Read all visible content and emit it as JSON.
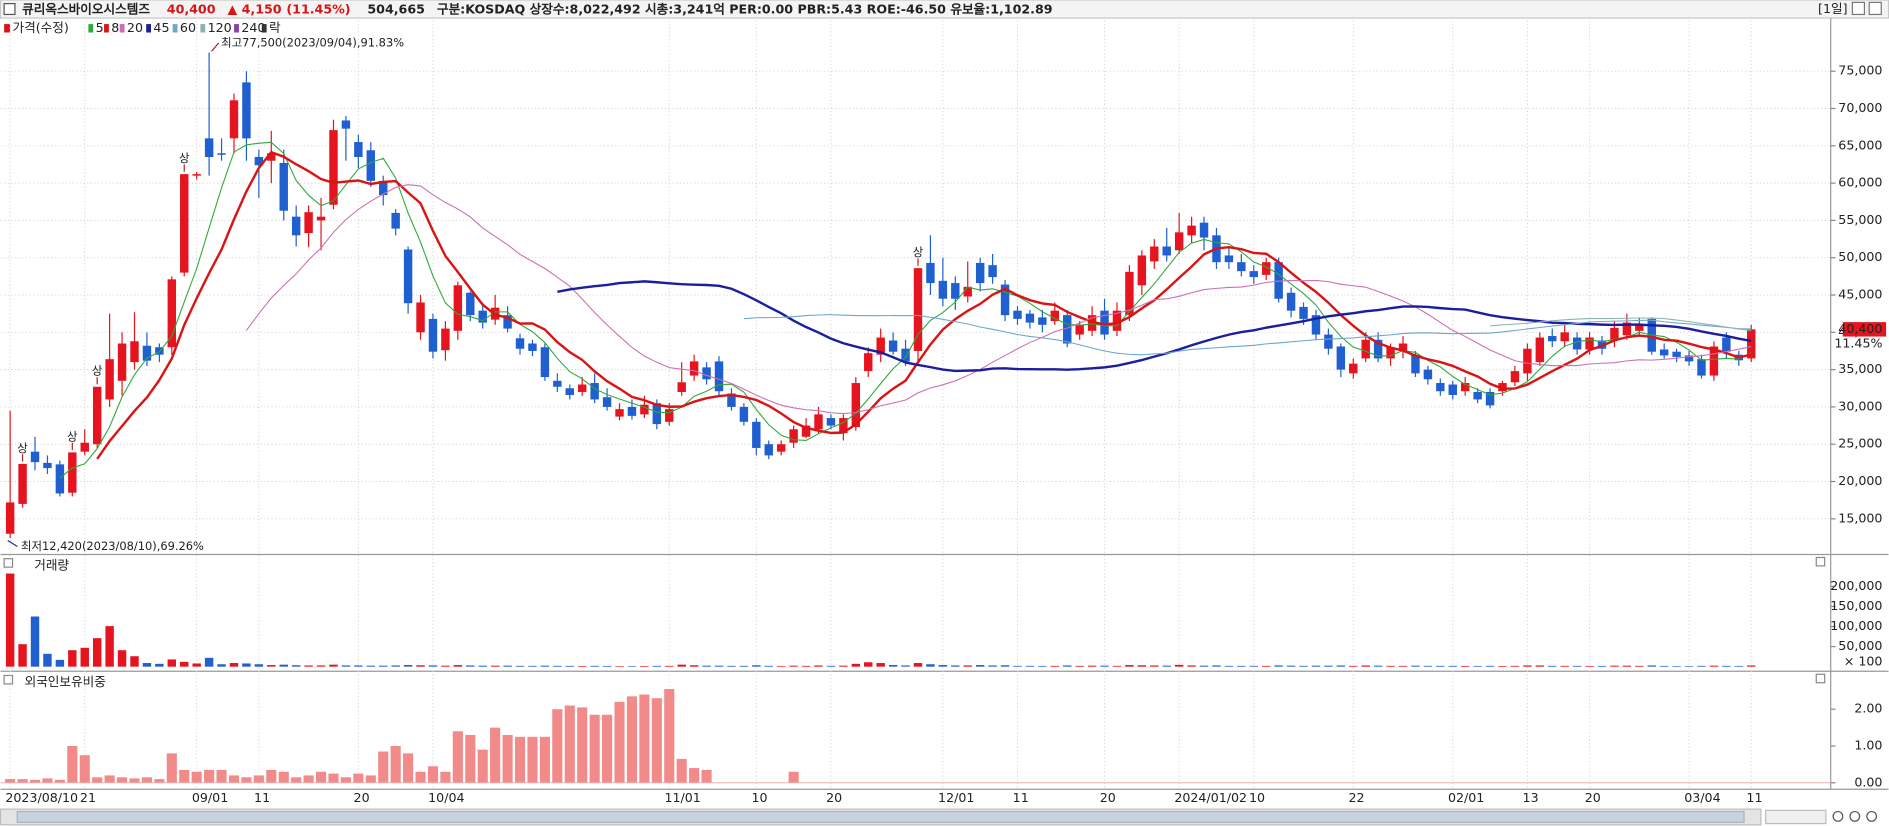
{
  "header": {
    "name": "큐리옥스바이오시스템즈",
    "price": "40,400",
    "change": "▲ 4,150",
    "change_pct": "(11.45%)",
    "volume": "504,665",
    "info": "구분:KOSDAQ 상장수:8,022,492 시총:3,241억 PER:0.00 PBR:5.43 ROE:-46.50 유보율:1,102.89",
    "period": "[1일]"
  },
  "chart_data": [
    {
      "type": "candlestick",
      "price_label": "가격(수정)",
      "ex_rights_label": "락",
      "categories": [
        "2023/08/10",
        null,
        null,
        null,
        null,
        null,
        "21",
        null,
        null,
        null,
        null,
        null,
        null,
        null,
        null,
        "09/01",
        null,
        null,
        null,
        null,
        "11",
        null,
        null,
        null,
        null,
        null,
        null,
        null,
        "20",
        null,
        null,
        null,
        null,
        null,
        "10/04",
        null,
        null,
        null,
        null,
        null,
        null,
        null,
        null,
        null,
        null,
        null,
        null,
        null,
        null,
        null,
        null,
        null,
        null,
        "11/01",
        null,
        null,
        null,
        null,
        null,
        null,
        "10",
        null,
        null,
        null,
        null,
        null,
        "20",
        null,
        null,
        null,
        null,
        null,
        null,
        null,
        null,
        "12/01",
        null,
        null,
        null,
        null,
        null,
        "11",
        null,
        null,
        null,
        null,
        null,
        null,
        "20",
        null,
        null,
        null,
        null,
        null,
        "2024/01/02",
        null,
        null,
        null,
        null,
        null,
        "10",
        null,
        null,
        null,
        null,
        null,
        null,
        null,
        "22",
        null,
        null,
        null,
        null,
        null,
        null,
        null,
        "02/01",
        null,
        null,
        null,
        null,
        null,
        "13",
        null,
        null,
        null,
        null,
        "20",
        null,
        null,
        null,
        null,
        null,
        null,
        null,
        "03/04",
        null,
        null,
        null,
        null,
        "11"
      ],
      "open": [
        13000,
        17000,
        24000,
        22500,
        22300,
        18500,
        24000,
        25000,
        31000,
        33500,
        36000,
        38200,
        38000,
        38000,
        48000,
        61000,
        66000,
        64000,
        66000,
        73500,
        63500,
        63000,
        62700,
        55500,
        53300,
        55000,
        57100,
        68400,
        65500,
        64400,
        60300,
        56000,
        51100,
        40000,
        41800,
        37600,
        40200,
        45300,
        42900,
        41700,
        42300,
        39200,
        38500,
        38000,
        33500,
        32500,
        32000,
        33200,
        31300,
        28700,
        30000,
        29000,
        30500,
        28000,
        32000,
        34200,
        35300,
        36100,
        31800,
        30000,
        28000,
        25000,
        24000,
        25200,
        26000,
        27000,
        28500,
        26500,
        27300,
        34800,
        37000,
        38900,
        37800,
        37500,
        49300,
        46900,
        46600,
        44800,
        49300,
        49000,
        46400,
        42900,
        42500,
        42000,
        41500,
        42300,
        39700,
        40200,
        42900,
        40200,
        42300,
        46300,
        49500,
        51500,
        51000,
        53000,
        54700,
        53000,
        50300,
        49400,
        48200,
        47700,
        49400,
        45300,
        43400,
        42300,
        39700,
        38100,
        34500,
        36500,
        39000,
        36500,
        37500,
        37000,
        35000,
        33200,
        33000,
        32100,
        32000,
        32000,
        32100,
        33300,
        34500,
        36000,
        39500,
        38800,
        39300,
        37700,
        38900,
        38900,
        39600,
        40200,
        41800,
        37700,
        37400,
        36900,
        36400,
        34200,
        39300,
        37000,
        36500
      ],
      "high": [
        29500,
        22360,
        26000,
        23500,
        22800,
        23900,
        27000,
        32700,
        42500,
        40000,
        42700,
        40000,
        38500,
        47500,
        61200,
        61500,
        77500,
        66000,
        72000,
        75000,
        64500,
        67000,
        64500,
        57000,
        57000,
        58000,
        68500,
        69000,
        66500,
        65500,
        61000,
        56500,
        51500,
        45000,
        42500,
        41500,
        46800,
        45500,
        44000,
        45000,
        43500,
        39800,
        39000,
        38500,
        34500,
        33000,
        34000,
        34500,
        32500,
        30500,
        31000,
        31500,
        31000,
        30500,
        36000,
        37000,
        36000,
        36800,
        32500,
        30500,
        28500,
        25500,
        25500,
        27500,
        28500,
        30000,
        29000,
        29000,
        34000,
        38000,
        40500,
        40000,
        39000,
        48600,
        53000,
        50000,
        47500,
        49500,
        50000,
        50500,
        47000,
        43500,
        43000,
        43000,
        44000,
        43000,
        41500,
        43500,
        44500,
        44000,
        49000,
        51000,
        52500,
        54000,
        56000,
        55500,
        55500,
        54000,
        51500,
        50500,
        49000,
        50000,
        50000,
        46000,
        44000,
        43000,
        40500,
        38500,
        36500,
        40000,
        40000,
        38500,
        39500,
        37500,
        35500,
        33800,
        33500,
        34000,
        32500,
        32500,
        33500,
        35500,
        38500,
        40000,
        40500,
        41000,
        40000,
        40000,
        39500,
        41500,
        42500,
        42000,
        42000,
        38500,
        37800,
        37500,
        37000,
        38800,
        40000,
        37500,
        41000
      ],
      "low": [
        12420,
        16500,
        21500,
        21000,
        18000,
        18000,
        23500,
        24500,
        30000,
        31500,
        35000,
        35500,
        36000,
        37000,
        47500,
        60500,
        61000,
        63000,
        64000,
        63000,
        58000,
        60000,
        55000,
        51500,
        51400,
        51000,
        56500,
        63000,
        62000,
        59500,
        57000,
        53000,
        42500,
        39000,
        36500,
        36200,
        39000,
        41500,
        40500,
        41000,
        40000,
        37000,
        36800,
        33500,
        32000,
        31000,
        31500,
        30500,
        29500,
        28200,
        28300,
        28500,
        27000,
        27500,
        31500,
        33500,
        33000,
        31500,
        29500,
        27500,
        23500,
        23000,
        23500,
        24500,
        25800,
        26500,
        27000,
        25500,
        26800,
        34000,
        36000,
        37000,
        35500,
        36000,
        45000,
        43500,
        43000,
        44000,
        45500,
        46500,
        41500,
        41000,
        40500,
        40000,
        41000,
        38000,
        39000,
        39500,
        39000,
        39500,
        41500,
        45000,
        48500,
        49500,
        50500,
        52000,
        51000,
        48500,
        48500,
        47500,
        46500,
        47000,
        44000,
        42000,
        41000,
        39000,
        37000,
        34000,
        33800,
        36000,
        36000,
        35500,
        36500,
        34000,
        33000,
        31500,
        31000,
        31500,
        30500,
        29800,
        31500,
        32800,
        33500,
        35500,
        38000,
        38000,
        37000,
        37000,
        37000,
        38000,
        39000,
        39500,
        37000,
        36500,
        36000,
        35500,
        33800,
        33500,
        36500,
        35500,
        36000
      ],
      "close": [
        17200,
        22360,
        22600,
        21800,
        18400,
        23900,
        25200,
        32700,
        36400,
        38500,
        38800,
        36200,
        37000,
        47100,
        61200,
        61200,
        63500,
        63800,
        71100,
        66000,
        62400,
        64000,
        56300,
        53000,
        56100,
        55500,
        67100,
        67300,
        63500,
        60300,
        58400,
        53900,
        43900,
        44000,
        37400,
        40500,
        46300,
        42300,
        41300,
        43300,
        40500,
        37800,
        37500,
        34000,
        32700,
        31600,
        33000,
        31000,
        30000,
        29700,
        28800,
        30300,
        27700,
        29700,
        33300,
        36100,
        33700,
        32100,
        30000,
        28000,
        24500,
        23500,
        25000,
        27000,
        27500,
        29000,
        27500,
        28500,
        33200,
        37200,
        39300,
        37400,
        36100,
        48600,
        46600,
        44500,
        44500,
        46100,
        46600,
        47400,
        42300,
        41800,
        41300,
        41000,
        42900,
        38500,
        41000,
        42300,
        39700,
        42900,
        48100,
        50300,
        51500,
        50300,
        53400,
        54300,
        52700,
        49400,
        49400,
        48200,
        47400,
        49400,
        44500,
        42900,
        41800,
        39700,
        37800,
        35000,
        35800,
        39000,
        36500,
        38000,
        38500,
        34500,
        33700,
        32100,
        31600,
        33200,
        31000,
        30200,
        33200,
        34800,
        37800,
        39300,
        38800,
        40000,
        37700,
        39300,
        37800,
        40600,
        41300,
        41000,
        37400,
        36900,
        36700,
        36100,
        34200,
        38100,
        37400,
        36250,
        40400
      ],
      "up_color": "#e6141e",
      "down_color": "#1f5fd0",
      "ma_periods": [
        5,
        8,
        20,
        45,
        60,
        120,
        240
      ],
      "ma_colors": [
        "#2ea83a",
        "#d81414",
        "#cc6fb4",
        "#1b1f9e",
        "#6aa8cc",
        "#8fb0b0",
        "#8a3fa8"
      ],
      "ylim": [
        10300,
        81800
      ],
      "yticks": [
        {
          "value": 15000,
          "label": "15,000"
        },
        {
          "value": 20000,
          "label": "20,000"
        },
        {
          "value": 25000,
          "label": "25,000"
        },
        {
          "value": 30000,
          "label": "30,000"
        },
        {
          "value": 35000,
          "label": "35,000"
        },
        {
          "value": 40000,
          "label": "40,000"
        },
        {
          "value": 45000,
          "label": "45,000"
        },
        {
          "value": 50000,
          "label": "50,000"
        },
        {
          "value": 55000,
          "label": "55,000"
        },
        {
          "value": 60000,
          "label": "60,000"
        },
        {
          "value": 65000,
          "label": "65,000"
        },
        {
          "value": 70000,
          "label": "70,000"
        },
        {
          "value": 75000,
          "label": "75,000"
        }
      ],
      "grid": true,
      "high_annotation": "최고77,500(2023/09/04),91.83%",
      "low_annotation": "최저12,420(2023/08/10),69.26%",
      "limit_up": {
        "label": "상",
        "at": [
          1,
          5,
          7,
          14,
          73
        ]
      },
      "last_price_label": "40,400",
      "last_change_label": "11.45%"
    },
    {
      "type": "bar",
      "title": "거래량",
      "unit_label": "× 100",
      "values": [
        232000,
        56000,
        125000,
        32000,
        17000,
        41000,
        47000,
        71000,
        101000,
        41000,
        26000,
        9000,
        7000,
        18000,
        12000,
        8000,
        22000,
        6000,
        9000,
        8000,
        6000,
        4000,
        5000,
        3500,
        3000,
        3000,
        5000,
        3000,
        3000,
        2500,
        2500,
        3000,
        4000,
        3500,
        3000,
        2500,
        4000,
        3000,
        2500,
        2500,
        2500,
        2000,
        2000,
        2500,
        2000,
        2000,
        1800,
        2000,
        1800,
        1500,
        1500,
        1800,
        2000,
        2000,
        5000,
        3500,
        2500,
        2500,
        2000,
        2000,
        3500,
        2000,
        1800,
        2500,
        2000,
        3000,
        2000,
        2500,
        7000,
        11000,
        9000,
        4000,
        3000,
        9000,
        6000,
        4000,
        3000,
        3000,
        4000,
        3000,
        3500,
        2000,
        2000,
        1800,
        2000,
        3000,
        2000,
        2500,
        2500,
        2000,
        4000,
        3500,
        3000,
        2500,
        4500,
        3000,
        2500,
        3000,
        2000,
        2000,
        2000,
        2000,
        3000,
        2500,
        2000,
        2500,
        2500,
        3000,
        2000,
        3000,
        2500,
        2000,
        2000,
        2500,
        2000,
        2000,
        2000,
        1800,
        1800,
        2000,
        1800,
        2000,
        3000,
        3000,
        2000,
        2000,
        2000,
        1800,
        1800,
        2500,
        2500,
        2000,
        3000,
        1800,
        1500,
        1500,
        2000,
        2500,
        2000,
        1800,
        3000
      ],
      "ylim": [
        -7000,
        272000
      ],
      "yticks": [
        {
          "value": 50000,
          "label": "50,000"
        },
        {
          "value": 100000,
          "label": "100,000"
        },
        {
          "value": 150000,
          "label": "150,000"
        },
        {
          "value": 200000,
          "label": "200,000"
        }
      ]
    },
    {
      "type": "bar",
      "title": "외국인보유비중",
      "color": "#f28a8a",
      "values": [
        0.1,
        0.1,
        0.08,
        0.12,
        0.08,
        1.0,
        0.75,
        0.15,
        0.2,
        0.15,
        0.12,
        0.15,
        0.1,
        0.8,
        0.35,
        0.3,
        0.35,
        0.35,
        0.2,
        0.15,
        0.2,
        0.35,
        0.3,
        0.15,
        0.2,
        0.3,
        0.25,
        0.15,
        0.25,
        0.2,
        0.85,
        1.0,
        0.8,
        0.3,
        0.45,
        0.3,
        1.4,
        1.3,
        0.9,
        1.5,
        1.3,
        1.25,
        1.25,
        1.25,
        2.0,
        2.1,
        2.05,
        1.85,
        1.85,
        2.2,
        2.35,
        2.4,
        2.3,
        2.55,
        0.65,
        0.4,
        0.35,
        0,
        0,
        0,
        0,
        0,
        0,
        0.3,
        0,
        0,
        0,
        0,
        0,
        0,
        0,
        0,
        0,
        0,
        0,
        0,
        0,
        0,
        0,
        0,
        0,
        0,
        0,
        0,
        0,
        0,
        0,
        0,
        0,
        0,
        0,
        0,
        0,
        0,
        0,
        0,
        0,
        0,
        0,
        0,
        0,
        0,
        0,
        0,
        0,
        0,
        0,
        0,
        0,
        0,
        0,
        0,
        0,
        0,
        0,
        0,
        0,
        0,
        0,
        0,
        0,
        0,
        0,
        0,
        0,
        0,
        0,
        0,
        0,
        0,
        0,
        0,
        0,
        0,
        0,
        0,
        0,
        0,
        0,
        0,
        0
      ],
      "ylim": [
        -0.16,
        2.95
      ],
      "yticks": [
        {
          "value": 0,
          "label": "0.00"
        },
        {
          "value": 1,
          "label": "1.00"
        },
        {
          "value": 2,
          "label": "2.00"
        }
      ]
    }
  ]
}
